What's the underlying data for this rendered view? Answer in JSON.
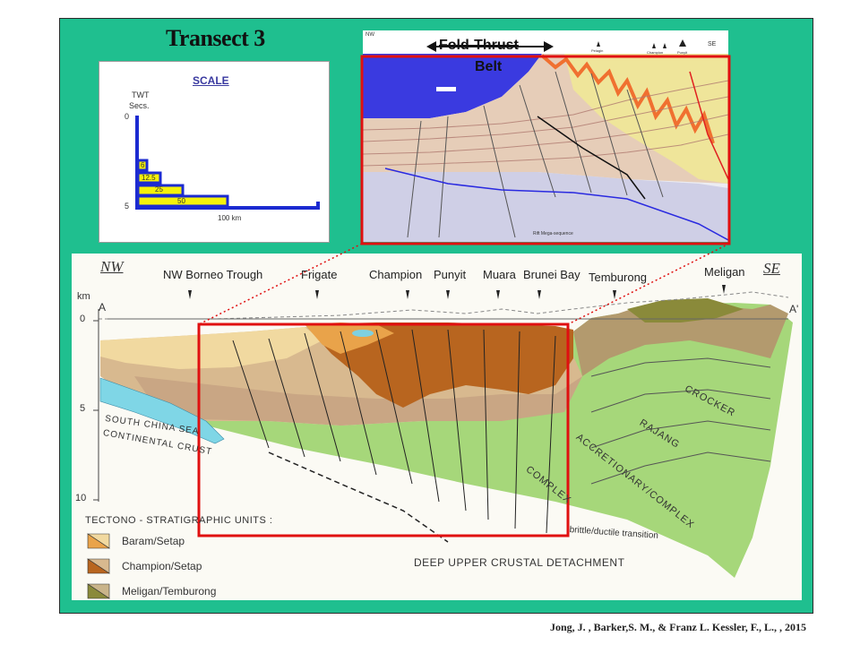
{
  "title": "Transect 3",
  "scale": {
    "heading": "SCALE",
    "axis_label_line1": "TWT",
    "axis_label_line2": "Secs.",
    "tick_top": "0",
    "tick_bottom": "5",
    "bars": [
      "6",
      "12.5",
      "25",
      "50"
    ],
    "x_label": "100 km"
  },
  "seismic": {
    "left_corner": "NW",
    "right_corner": "SE",
    "label_line1": "Fold-Thrust",
    "label_line2": "Belt",
    "small_labels": [
      "Pelagin",
      "Champion",
      "Punyit"
    ],
    "bottom_label": "Rift Mega-sequence"
  },
  "section": {
    "nw": "NW",
    "se": "SE",
    "depth_unit": "km",
    "depth_ticks": [
      "0",
      "5",
      "10"
    ],
    "point_a": "A",
    "point_a_prime": "A'",
    "localities": [
      "NW Borneo Trough",
      "Frigate",
      "Champion",
      "Punyit",
      "Muara",
      "Brunei Bay",
      "Temburong",
      "Meligan"
    ],
    "crust_label_line1": "SOUTH CHINA SEA",
    "crust_label_line2": "CONTINENTAL CRUST",
    "complex_labels": [
      "CROCKER",
      "RAJANG",
      "ACCRETIONARY/COMPLEX",
      "COMPLEX"
    ],
    "transition": "brittle/ductile transition",
    "detachment": "DEEP UPPER CRUSTAL DETACHMENT",
    "legend_title": "TECTONO - STRATIGRAPHIC UNITS :",
    "legend": [
      {
        "label": "Baram/Setap",
        "color": "#e9a34a"
      },
      {
        "label": "Champion/Setap",
        "color": "#b8651f"
      },
      {
        "label": "Meligan/Temburong",
        "color": "#8a8a3a"
      }
    ]
  },
  "credit": "Jong, J. , Barker,S. M., & Franz L. Kessler, F., L., , 2015",
  "colors": {
    "frame": "#1fbf8f",
    "highlight": "#e01010",
    "scale_bar": "#f5f20a",
    "scale_axis": "#1c2bd1"
  }
}
